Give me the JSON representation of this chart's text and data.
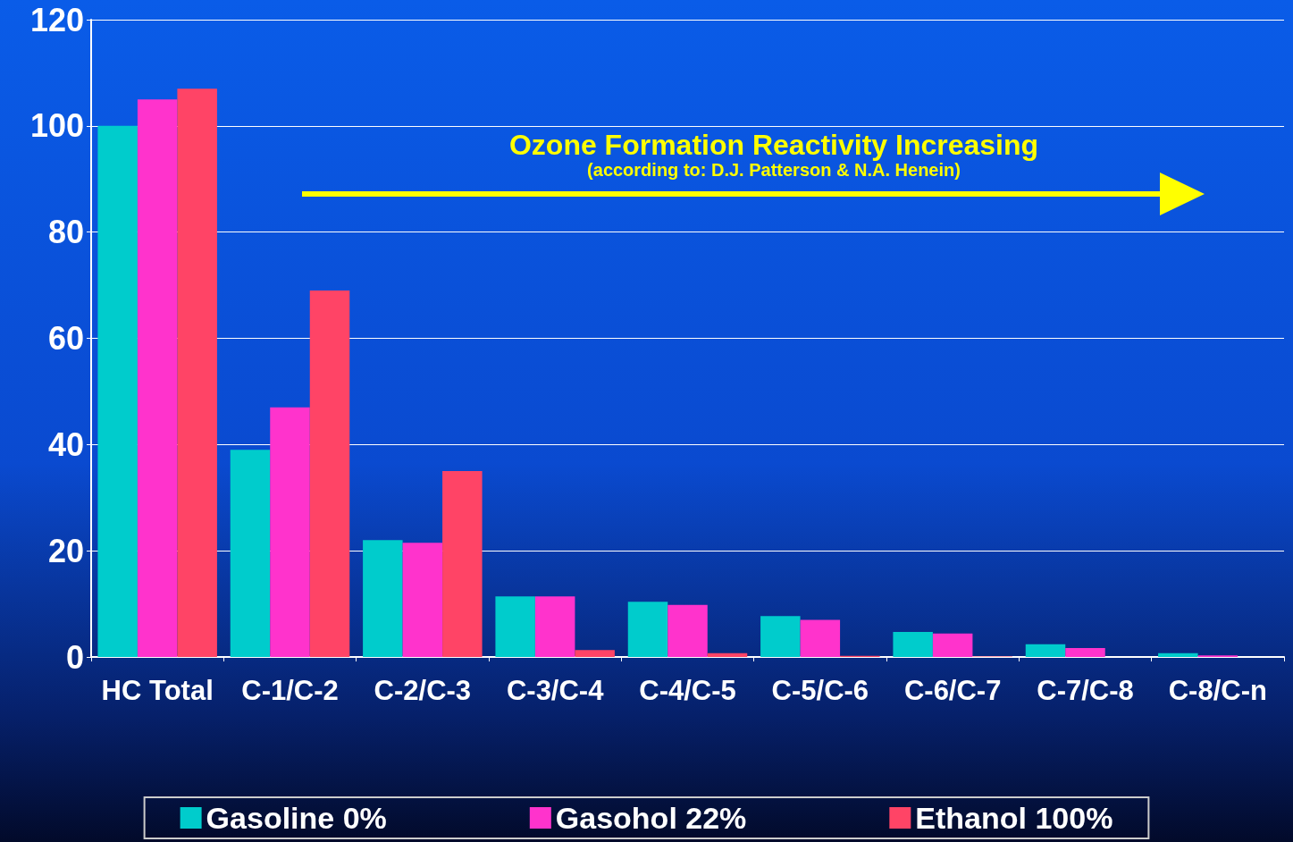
{
  "chart_data": {
    "type": "bar",
    "categories": [
      "HC Total",
      "C-1/C-2",
      "C-2/C-3",
      "C-3/C-4",
      "C-4/C-5",
      "C-5/C-6",
      "C-6/C-7",
      "C-7/C-8",
      "C-8/C-n"
    ],
    "series": [
      {
        "name": "Gasoline 0%",
        "color": "#00cccc",
        "values": [
          100,
          39,
          22,
          11.4,
          10.4,
          7.7,
          4.7,
          2.4,
          0.7
        ]
      },
      {
        "name": "Gasohol 22%",
        "color": "#ff33cc",
        "values": [
          105,
          47,
          21.5,
          11.4,
          9.8,
          7,
          4.4,
          1.7,
          0.3
        ]
      },
      {
        "name": "Ethanol 100%",
        "color": "#ff4466",
        "values": [
          107,
          69,
          35,
          1.3,
          0.7,
          0.2,
          0.1,
          0,
          0
        ]
      }
    ],
    "annotations": [
      "Ozone Formation Reactivity Increasing",
      "(according to: D.J. Patterson & N.A. Henein)"
    ],
    "ylim": [
      0,
      120
    ],
    "yticks": [
      0,
      20,
      40,
      60,
      80,
      100,
      120
    ],
    "grid": "y",
    "legend": "bottom"
  }
}
